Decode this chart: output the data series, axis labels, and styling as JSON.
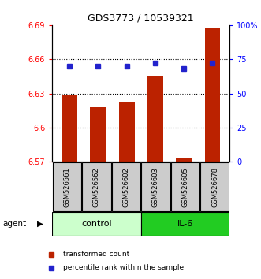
{
  "title": "GDS3773 / 10539321",
  "samples": [
    "GSM526561",
    "GSM526562",
    "GSM526602",
    "GSM526603",
    "GSM526605",
    "GSM526678"
  ],
  "groups": [
    "control",
    "control",
    "control",
    "IL-6",
    "IL-6",
    "IL-6"
  ],
  "red_values": [
    6.628,
    6.618,
    6.622,
    6.645,
    6.574,
    6.688
  ],
  "blue_values_pct": [
    70,
    70,
    70,
    72,
    68,
    72
  ],
  "ylim_left": [
    6.57,
    6.69
  ],
  "ylim_right": [
    0,
    100
  ],
  "yticks_left": [
    6.57,
    6.6,
    6.63,
    6.66,
    6.69
  ],
  "yticks_right": [
    0,
    25,
    50,
    75,
    100
  ],
  "ytick_labels_left": [
    "6.57",
    "6.6",
    "6.63",
    "6.66",
    "6.69"
  ],
  "ytick_labels_right": [
    "0",
    "25",
    "50",
    "75",
    "100%"
  ],
  "hlines": [
    6.6,
    6.63,
    6.66
  ],
  "bar_color": "#bb2200",
  "dot_color": "#2222cc",
  "control_color": "#ccffcc",
  "il6_color": "#22cc22",
  "sample_bg_color": "#cccccc",
  "bar_bottom": 6.57,
  "legend_items": [
    "transformed count",
    "percentile rank within the sample"
  ],
  "agent_label": "agent",
  "group_labels": [
    "control",
    "IL-6"
  ],
  "figsize": [
    3.31,
    3.54
  ],
  "dpi": 100
}
